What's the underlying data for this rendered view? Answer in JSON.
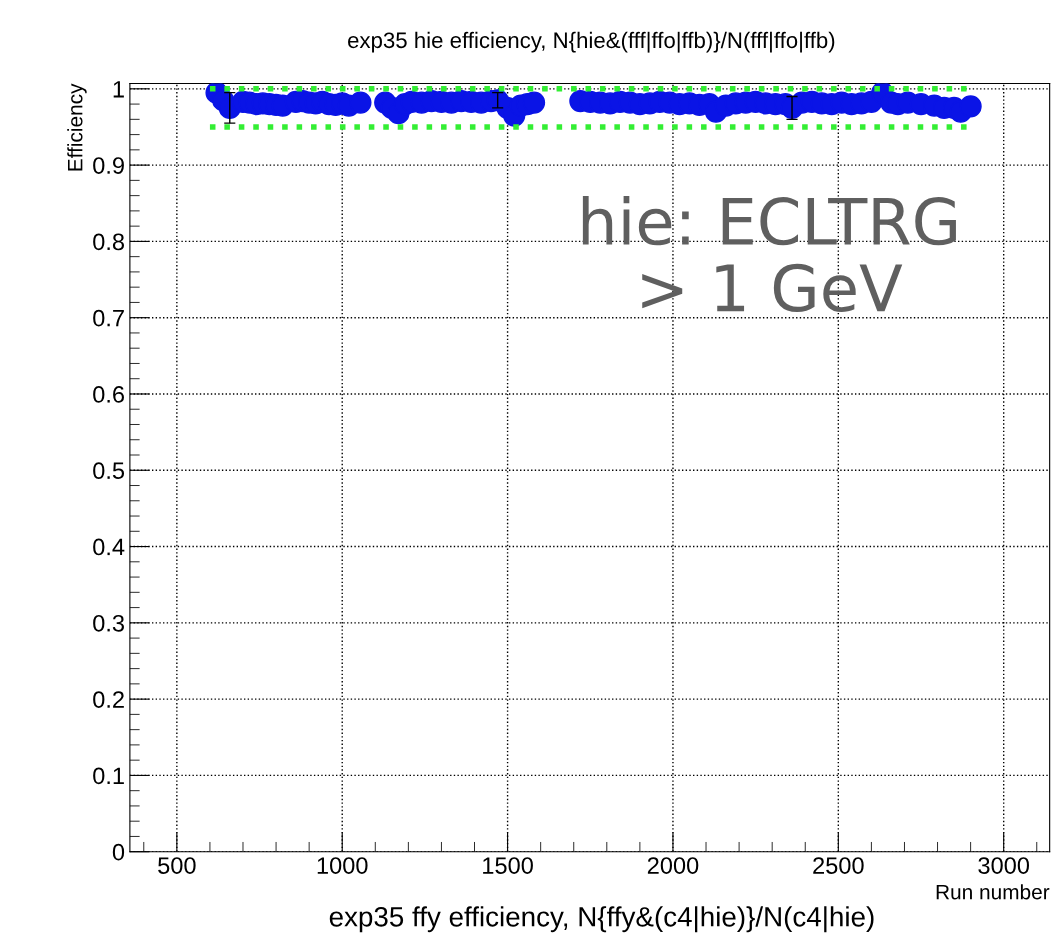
{
  "chart_data": {
    "type": "scatter",
    "title": "exp35 hie efficiency, N{hie&(fff|ffo|ffb)}/N(fff|ffo|ffb)",
    "xlabel": "Run number",
    "ylabel": "Efficiency",
    "annotations": [
      "hie: ECLTRG\n> 1 GeV",
      "exp35 ffy efficiency, N{ffy&(c4|hie)}/N(c4|hie)"
    ],
    "xlim": [
      358,
      3139
    ],
    "ylim": [
      0,
      1.007
    ],
    "xticks": [
      500,
      1000,
      1500,
      2000,
      2500,
      3000
    ],
    "yticks": [
      0,
      0.1,
      0.2,
      0.3,
      0.4,
      0.5,
      0.6,
      0.7,
      0.8,
      0.9,
      1
    ],
    "grid": true,
    "marker": "circle",
    "series": [
      {
        "color": "#0a14e6",
        "x": [
          620,
          640,
          660,
          700,
          720,
          740,
          760,
          780,
          800,
          820,
          860,
          880,
          900,
          920,
          940,
          960,
          980,
          1000,
          1020,
          1055,
          1130,
          1150,
          1170,
          1190,
          1210,
          1240,
          1270,
          1300,
          1330,
          1360,
          1390,
          1420,
          1450,
          1470,
          1500,
          1520,
          1540,
          1560,
          1580,
          1720,
          1750,
          1780,
          1810,
          1840,
          1870,
          1900,
          1930,
          1960,
          1990,
          2020,
          2050,
          2080,
          2110,
          2130,
          2160,
          2190,
          2220,
          2250,
          2280,
          2310,
          2340,
          2360,
          2390,
          2420,
          2450,
          2480,
          2510,
          2540,
          2570,
          2600,
          2633,
          2660,
          2680,
          2710,
          2750,
          2790,
          2820,
          2850,
          2870,
          2900
        ],
        "values": [
          0.995,
          0.985,
          0.975,
          0.983,
          0.982,
          0.98,
          0.981,
          0.98,
          0.979,
          0.978,
          0.983,
          0.984,
          0.982,
          0.981,
          0.983,
          0.98,
          0.979,
          0.981,
          0.978,
          0.982,
          0.982,
          0.975,
          0.968,
          0.98,
          0.983,
          0.982,
          0.984,
          0.983,
          0.982,
          0.984,
          0.983,
          0.982,
          0.984,
          0.985,
          0.975,
          0.965,
          0.978,
          0.98,
          0.982,
          0.984,
          0.983,
          0.982,
          0.981,
          0.983,
          0.982,
          0.98,
          0.981,
          0.983,
          0.982,
          0.98,
          0.981,
          0.979,
          0.98,
          0.97,
          0.978,
          0.981,
          0.982,
          0.983,
          0.981,
          0.98,
          0.98,
          0.975,
          0.982,
          0.983,
          0.981,
          0.98,
          0.982,
          0.98,
          0.981,
          0.983,
          0.995,
          0.982,
          0.98,
          0.982,
          0.98,
          0.978,
          0.975,
          0.975,
          0.97,
          0.977
        ],
        "errors": [
          null,
          null,
          0.02,
          null,
          null,
          null,
          null,
          null,
          null,
          null,
          null,
          null,
          null,
          null,
          null,
          null,
          null,
          null,
          null,
          null,
          null,
          null,
          null,
          null,
          null,
          null,
          null,
          null,
          null,
          null,
          null,
          null,
          null,
          0.01,
          null,
          null,
          null,
          null,
          null,
          null,
          null,
          null,
          null,
          null,
          null,
          null,
          null,
          null,
          null,
          null,
          null,
          null,
          null,
          null,
          null,
          null,
          null,
          null,
          null,
          null,
          null,
          0.015,
          null,
          null,
          null,
          null,
          null,
          null,
          null,
          null,
          null,
          null,
          null,
          null,
          null,
          null,
          null,
          null,
          null,
          null
        ]
      },
      {
        "type": "line",
        "color": "#33ee33",
        "line_style": "dotted",
        "marker": "none",
        "x": [
          600,
          2890
        ],
        "values": [
          1,
          1
        ]
      },
      {
        "type": "line",
        "color": "#33ee33",
        "line_style": "dotted",
        "marker": "none",
        "x": [
          600,
          2890
        ],
        "values": [
          0.95,
          0.95
        ]
      }
    ]
  }
}
